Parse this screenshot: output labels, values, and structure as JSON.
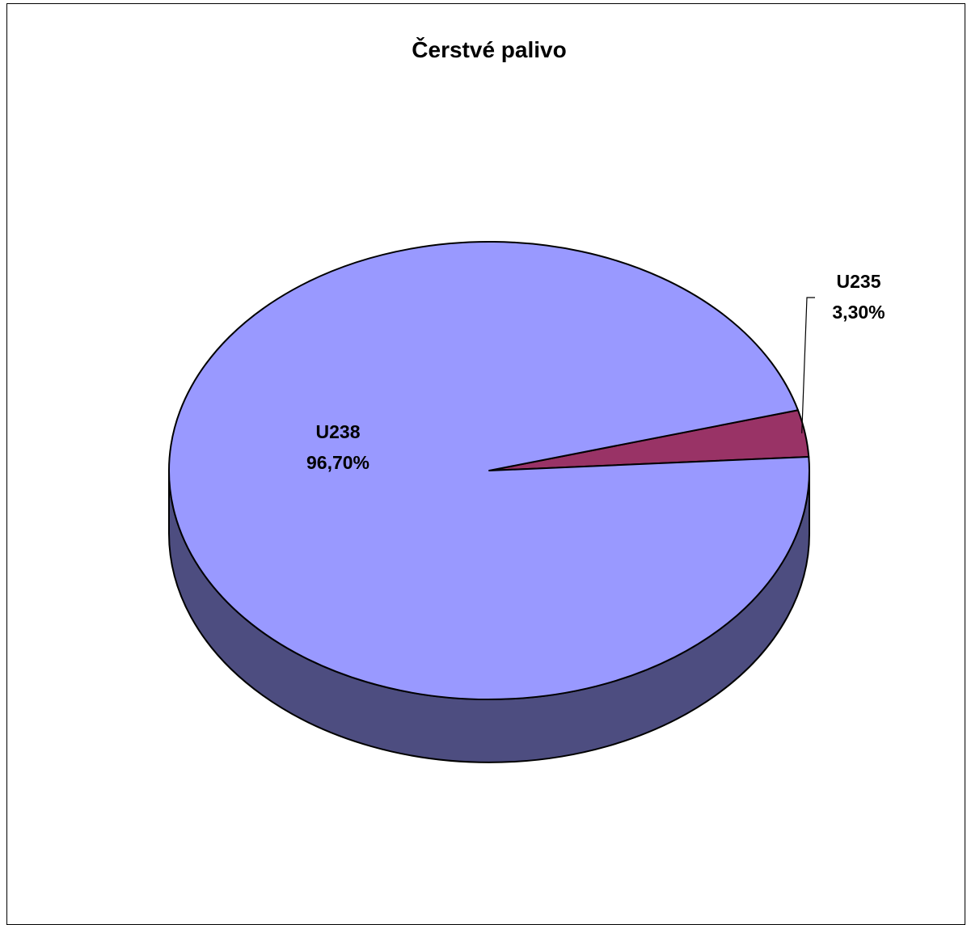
{
  "chart_data": {
    "type": "pie",
    "title": "Čerstvé palivo",
    "style": "3d",
    "slices": [
      {
        "category": "U235",
        "value": 3.3,
        "label": "3,30%",
        "color": "#993366",
        "side_color": "#4d1a33"
      },
      {
        "category": "U238",
        "value": 96.7,
        "label": "96,70%",
        "color": "#9999ff",
        "side_color": "#4d4d80"
      }
    ]
  }
}
